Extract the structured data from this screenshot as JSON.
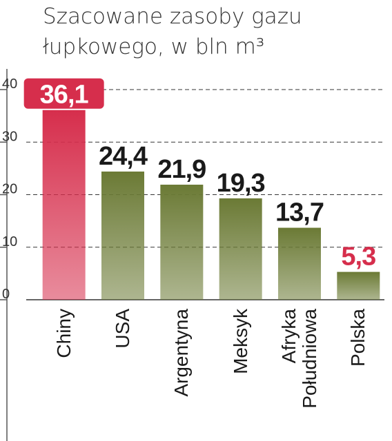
{
  "chart_data": {
    "type": "bar",
    "title": "Szacowane zasoby gazu łupkowego, w bln m³",
    "categories": [
      "Chiny",
      "USA",
      "Argentyna",
      "Meksyk",
      "Afryka Południowa",
      "Polska"
    ],
    "values": [
      36.1,
      24.4,
      21.9,
      19.3,
      13.7,
      5.3
    ],
    "value_labels": [
      "36,1",
      "24,4",
      "21,9",
      "19,3",
      "13,7",
      "5,3"
    ],
    "colors": [
      "#d62e4c",
      "#6b7a35",
      "#6b7a35",
      "#6b7a35",
      "#6b7a35",
      "#6b7a35"
    ],
    "label_colors": [
      "#ffffff",
      "#1a1a1a",
      "#1a1a1a",
      "#1a1a1a",
      "#1a1a1a",
      "#d62e4c"
    ],
    "label_backgrounds": [
      "#d62e4c",
      "none",
      "none",
      "none",
      "none",
      "none"
    ],
    "ylim": [
      0,
      40
    ],
    "yticks": [
      0,
      10,
      20,
      30,
      40
    ],
    "grid": true
  }
}
